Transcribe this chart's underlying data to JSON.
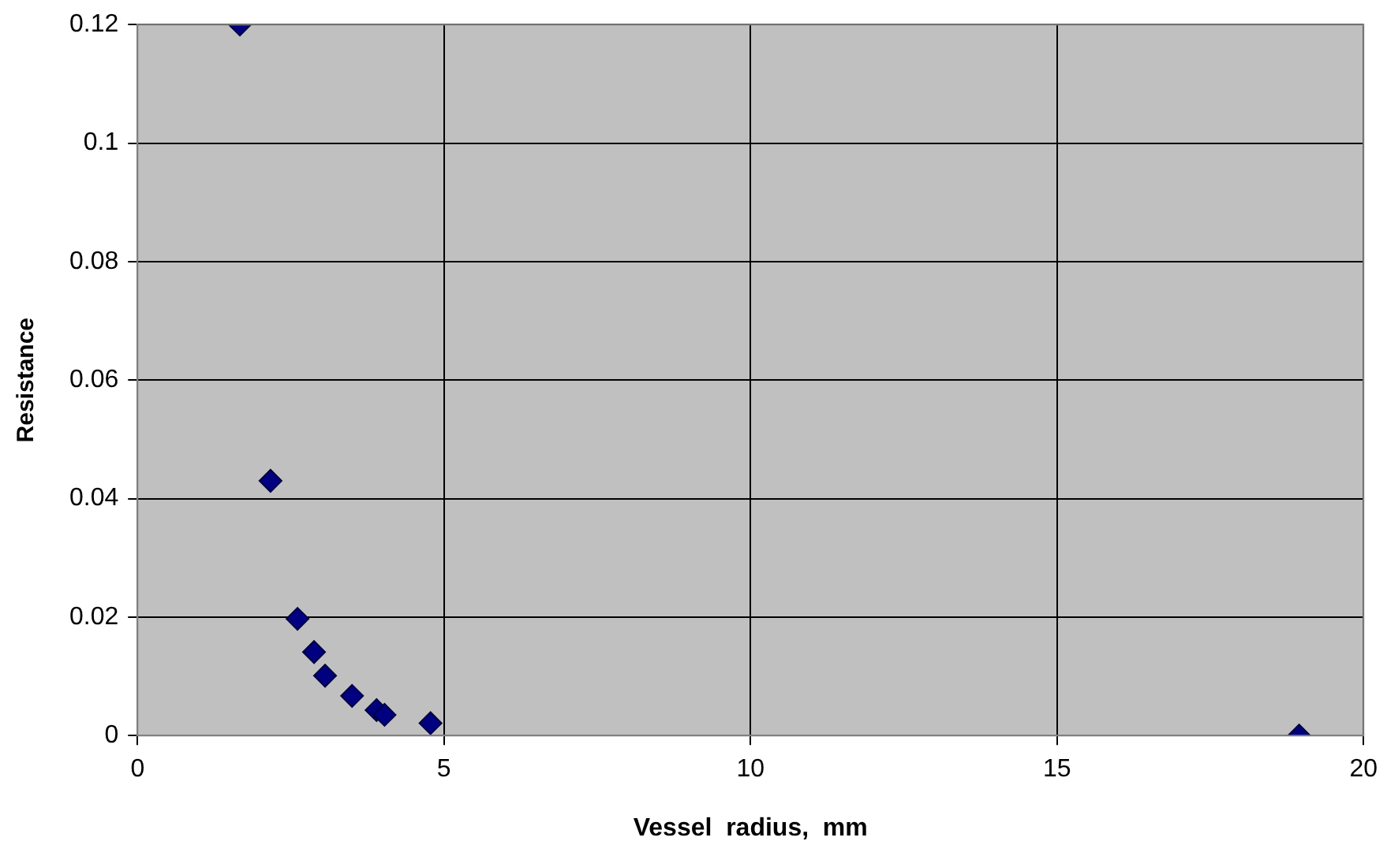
{
  "chart_data": {
    "type": "scatter",
    "xlabel": "Vessel  radius,  mm",
    "ylabel": "Resistance",
    "x": [
      1.67,
      2.17,
      2.61,
      2.88,
      3.06,
      3.5,
      3.9,
      4.03,
      4.78,
      18.95
    ],
    "values": [
      0.12,
      0.043,
      0.0197,
      0.0141,
      0.0101,
      0.0067,
      0.0043,
      0.0035,
      0.0021,
      0
    ],
    "color": "#000080",
    "marker": "diamond",
    "grid": true,
    "legend": false,
    "xlim": [
      0,
      20
    ],
    "xticks": [
      0,
      5,
      10,
      15,
      20
    ],
    "ylim": [
      0,
      0.12
    ],
    "yticks": [
      0,
      0.02,
      0.04,
      0.06,
      0.08,
      0.1,
      0.12
    ]
  }
}
